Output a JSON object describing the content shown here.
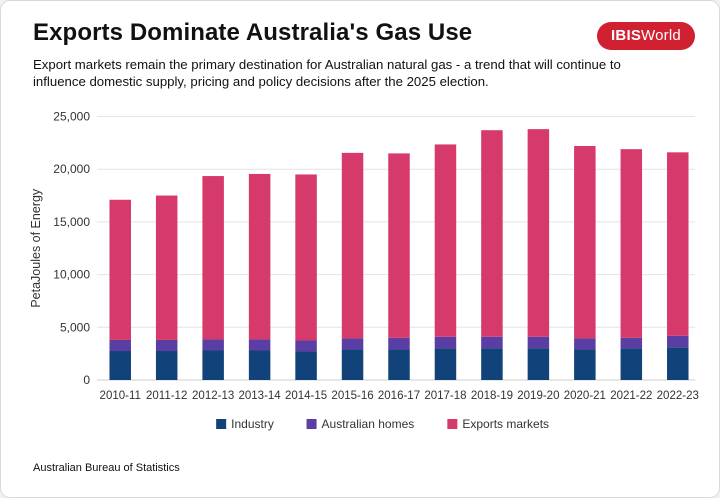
{
  "header": {
    "title": "Exports Dominate Australia's Gas Use",
    "subtitle": "Export markets remain the primary destination for Australian natural gas - a trend that will continue to influence domestic supply, pricing and policy decisions after the 2025 election.",
    "logo_bold": "IBIS",
    "logo_light": "World",
    "brand_color": "#d1202f"
  },
  "footer": {
    "source": "Australian Bureau of Statistics"
  },
  "chart_data": {
    "type": "bar",
    "stacked": true,
    "title": "Exports Dominate Australia's Gas Use",
    "xlabel": "",
    "ylabel": "PetaJoules of Energy",
    "ylim": [
      0,
      25000
    ],
    "yticks": [
      0,
      5000,
      10000,
      15000,
      20000,
      25000
    ],
    "ytick_labels": [
      "0",
      "5,000",
      "10,000",
      "15,000",
      "20,000",
      "25,000"
    ],
    "grid": true,
    "legend": "bottom-center",
    "categories": [
      "2010-11",
      "2011-12",
      "2012-13",
      "2013-14",
      "2014-15",
      "2015-16",
      "2016-17",
      "2017-18",
      "2018-19",
      "2019-20",
      "2020-21",
      "2021-22",
      "2022-23"
    ],
    "series": [
      {
        "name": "Industry",
        "color": "#12427a",
        "values": [
          2750,
          2750,
          2800,
          2800,
          2700,
          2900,
          2900,
          3000,
          3000,
          3000,
          2900,
          3000,
          3100
        ]
      },
      {
        "name": "Australian homes",
        "color": "#5a3ea4",
        "values": [
          1050,
          1050,
          1050,
          1050,
          1050,
          1050,
          1100,
          1100,
          1100,
          1100,
          1050,
          1000,
          1100
        ]
      },
      {
        "name": "Exports markets",
        "color": "#d63a6b",
        "values": [
          13300,
          13700,
          15500,
          15700,
          15750,
          17600,
          17500,
          18250,
          19600,
          19700,
          18250,
          17900,
          17400
        ]
      }
    ]
  }
}
